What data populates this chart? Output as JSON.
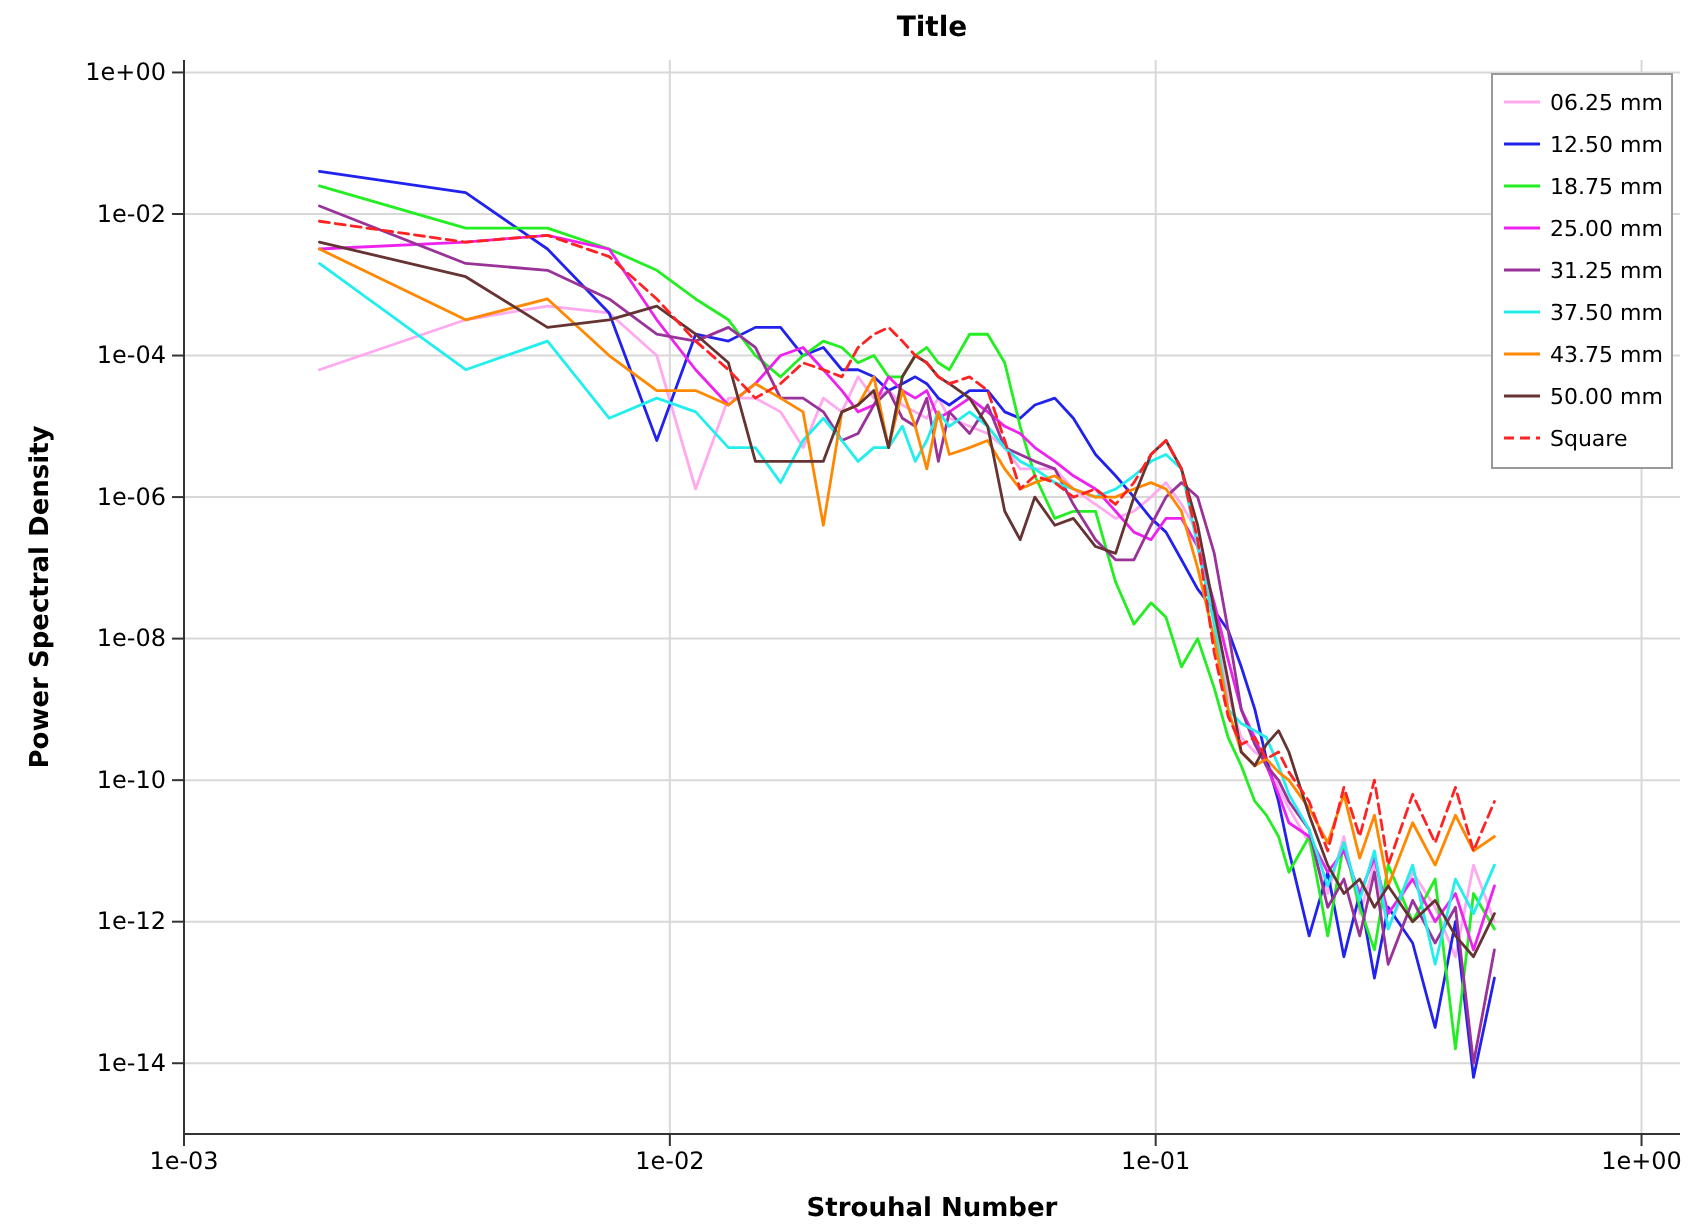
{
  "chart_data": {
    "type": "line",
    "title": "Title",
    "xlabel": "Strouhal Number",
    "ylabel": "Power Spectral Density",
    "log": "xy",
    "grid": true,
    "legend": "top right",
    "marker": "none",
    "xlim": [
      0.001,
      1.2
    ],
    "ylim": [
      1e-15,
      1.5
    ],
    "xticks": [
      {
        "value": 0.001,
        "label": "1e-03"
      },
      {
        "value": 0.01,
        "label": "1e-02"
      },
      {
        "value": 0.1,
        "label": "1e-01"
      },
      {
        "value": 1,
        "label": "1e+00"
      }
    ],
    "yticks": [
      {
        "value": 1,
        "label": "1e+00"
      },
      {
        "value": 0.01,
        "label": "1e-02"
      },
      {
        "value": 0.0001,
        "label": "1e-04"
      },
      {
        "value": 1e-06,
        "label": "1e-06"
      },
      {
        "value": 1e-08,
        "label": "1e-08"
      },
      {
        "value": 1e-10,
        "label": "1e-10"
      },
      {
        "value": 1e-12,
        "label": "1e-12"
      },
      {
        "value": 1e-14,
        "label": "1e-14"
      }
    ],
    "x": [
      0.0019,
      0.0038,
      0.0056,
      0.0075,
      0.0094,
      0.0113,
      0.0132,
      0.015,
      0.0169,
      0.0188,
      0.0207,
      0.0226,
      0.0244,
      0.0263,
      0.0282,
      0.0301,
      0.032,
      0.0338,
      0.0357,
      0.0376,
      0.0414,
      0.0451,
      0.0489,
      0.0526,
      0.0564,
      0.062,
      0.0677,
      0.0752,
      0.0827,
      0.0902,
      0.0978,
      0.105,
      0.113,
      0.122,
      0.132,
      0.141,
      0.15,
      0.16,
      0.169,
      0.179,
      0.188,
      0.207,
      0.226,
      0.244,
      0.263,
      0.282,
      0.301,
      0.338,
      0.376,
      0.414,
      0.451,
      0.498
    ],
    "series": [
      {
        "name": "06.25 mm",
        "color": "#ffaaee",
        "line_style": "solid",
        "values": [
          6.3e-05,
          0.00032,
          0.0005,
          0.0004,
          0.0001,
          1.3e-06,
          2.5e-05,
          2.5e-05,
          1.6e-05,
          5e-06,
          2.5e-05,
          1.6e-05,
          5e-05,
          2.5e-05,
          3.2e-05,
          2e-05,
          1.6e-05,
          1.3e-05,
          2.5e-05,
          1.3e-05,
          1e-05,
          7.9e-06,
          5e-06,
          2.5e-06,
          2.5e-06,
          2.5e-06,
          1.3e-06,
          7.9e-07,
          5e-07,
          6.3e-07,
          1e-06,
          1.6e-06,
          7.9e-07,
          3.2e-07,
          1.6e-08,
          1.6e-09,
          4e-10,
          2.5e-10,
          2e-10,
          7.9e-11,
          4e-11,
          1.3e-11,
          2.5e-12,
          1.6e-11,
          1.3e-12,
          6.3e-12,
          7.9e-13,
          5e-12,
          1.6e-12,
          3.2e-13,
          6.3e-12,
          1e-12
        ]
      },
      {
        "name": "12.50 mm",
        "color": "#2222ee",
        "line_style": "solid",
        "values": [
          0.04,
          0.02,
          0.0032,
          0.0004,
          6.3e-06,
          0.0002,
          0.00016,
          0.00025,
          0.00025,
          0.0001,
          0.00013,
          6.3e-05,
          6.3e-05,
          5e-05,
          3.2e-05,
          4e-05,
          5e-05,
          4e-05,
          2.5e-05,
          2e-05,
          3.2e-05,
          3.2e-05,
          1.6e-05,
          1.3e-05,
          2e-05,
          2.5e-05,
          1.3e-05,
          4e-06,
          2e-06,
          1e-06,
          5e-07,
          3.2e-07,
          1.3e-07,
          5e-08,
          2.5e-08,
          1.3e-08,
          4e-09,
          1e-09,
          2e-10,
          5e-11,
          1e-11,
          6.3e-13,
          5e-12,
          3.2e-13,
          2.5e-12,
          1.6e-13,
          1.6e-12,
          5e-13,
          3.2e-14,
          1e-12,
          6.3e-15,
          1.6e-13
        ]
      },
      {
        "name": "18.75 mm",
        "color": "#22ee22",
        "line_style": "solid",
        "values": [
          0.025,
          0.0063,
          0.0063,
          0.0032,
          0.0016,
          0.00063,
          0.00032,
          0.0001,
          5e-05,
          0.0001,
          0.00016,
          0.00013,
          7.9e-05,
          0.0001,
          5e-05,
          5e-05,
          0.0001,
          0.00013,
          7.9e-05,
          6.3e-05,
          0.0002,
          0.0002,
          7.9e-05,
          1e-05,
          2e-06,
          5e-07,
          6.3e-07,
          6.3e-07,
          6.3e-08,
          1.6e-08,
          3.2e-08,
          2e-08,
          4e-09,
          1e-08,
          2e-09,
          4e-10,
          1.6e-10,
          5e-11,
          3.2e-11,
          1.6e-11,
          5e-12,
          1.6e-11,
          6.3e-13,
          1.3e-11,
          1.6e-12,
          4e-13,
          6.3e-12,
          1e-12,
          4e-12,
          1.6e-14,
          2.5e-12,
          7.9e-13
        ]
      },
      {
        "name": "25.00 mm",
        "color": "#ee22ee",
        "line_style": "solid",
        "values": [
          0.0032,
          0.004,
          0.005,
          0.0032,
          0.00032,
          6.3e-05,
          2e-05,
          4e-05,
          0.0001,
          0.00013,
          6.3e-05,
          3.2e-05,
          1.6e-05,
          2e-05,
          5e-05,
          3.2e-05,
          2.5e-05,
          3.2e-05,
          1.3e-05,
          1.6e-05,
          2.5e-05,
          1.6e-05,
          1e-05,
          7.9e-06,
          5e-06,
          3.2e-06,
          2e-06,
          1.3e-06,
          6.3e-07,
          3.2e-07,
          2.5e-07,
          5e-07,
          5e-07,
          2e-07,
          3.2e-08,
          5e-09,
          1e-09,
          4e-10,
          1.6e-10,
          6.3e-11,
          2.5e-11,
          1.6e-11,
          5e-12,
          1e-11,
          2.5e-12,
          7.9e-12,
          1.3e-12,
          4e-12,
          1e-12,
          2.5e-12,
          4e-13,
          3.2e-12
        ]
      },
      {
        "name": "31.25 mm",
        "color": "#993399",
        "line_style": "solid",
        "values": [
          0.013,
          0.002,
          0.0016,
          0.00063,
          0.0002,
          0.00016,
          0.00025,
          0.00013,
          2.5e-05,
          2.5e-05,
          1.6e-05,
          6.3e-06,
          7.9e-06,
          2e-05,
          3.2e-05,
          1.3e-05,
          1e-05,
          2.5e-05,
          3.2e-06,
          1.6e-05,
          7.9e-06,
          2e-05,
          5e-06,
          4e-06,
          3.2e-06,
          2.5e-06,
          7.9e-07,
          2.5e-07,
          1.3e-07,
          1.3e-07,
          4e-07,
          1e-06,
          1.6e-06,
          1e-06,
          1.6e-07,
          1.3e-08,
          1e-09,
          3.2e-10,
          1.6e-10,
          1e-10,
          5e-11,
          2e-11,
          1.6e-12,
          4e-12,
          6.3e-13,
          5e-12,
          2.5e-13,
          2e-12,
          5e-13,
          1.6e-12,
          1e-14,
          4e-13
        ]
      },
      {
        "name": "37.50 mm",
        "color": "#22eeee",
        "line_style": "solid",
        "values": [
          0.002,
          6.3e-05,
          0.00016,
          1.3e-05,
          2.5e-05,
          1.6e-05,
          5e-06,
          5e-06,
          1.6e-06,
          6.3e-06,
          1.3e-05,
          6.3e-06,
          3.2e-06,
          5e-06,
          5e-06,
          1e-05,
          3.2e-06,
          6.3e-06,
          1.6e-05,
          1e-05,
          1.6e-05,
          1e-05,
          5e-06,
          3.2e-06,
          2.5e-06,
          1.6e-06,
          1.3e-06,
          1e-06,
          1.3e-06,
          2e-06,
          3.2e-06,
          4e-06,
          2.5e-06,
          2e-07,
          1.6e-08,
          1e-09,
          6.3e-10,
          5e-10,
          4e-10,
          1.6e-10,
          6.3e-11,
          2e-11,
          3.2e-12,
          1.3e-11,
          2e-12,
          1e-11,
          7.9e-13,
          6.3e-12,
          2.5e-13,
          4e-12,
          1.3e-12,
          6.3e-12
        ]
      },
      {
        "name": "43.75 mm",
        "color": "#ff8800",
        "line_style": "solid",
        "values": [
          0.0032,
          0.00032,
          0.00063,
          0.0001,
          3.2e-05,
          3.2e-05,
          2e-05,
          4e-05,
          2.5e-05,
          1.6e-05,
          4e-07,
          1.6e-05,
          2e-05,
          5e-05,
          5e-06,
          3.2e-05,
          1e-05,
          2.5e-06,
          1.6e-05,
          4e-06,
          5e-06,
          6.3e-06,
          2.5e-06,
          1.3e-06,
          1.6e-06,
          2e-06,
          1.3e-06,
          1e-06,
          1e-06,
          1.3e-06,
          1.6e-06,
          1.3e-06,
          6.3e-07,
          1e-07,
          1e-08,
          1e-09,
          2.5e-10,
          1.6e-10,
          2e-10,
          1.3e-10,
          1e-10,
          4e-11,
          1.3e-11,
          6.3e-11,
          7.9e-12,
          3.2e-11,
          3.2e-12,
          2.5e-11,
          6.3e-12,
          3.2e-11,
          1e-11,
          1.6e-11
        ]
      },
      {
        "name": "50.00 mm",
        "color": "#663333",
        "line_style": "solid",
        "values": [
          0.004,
          0.0013,
          0.00025,
          0.00032,
          0.0005,
          0.0002,
          7.9e-05,
          3.2e-06,
          3.2e-06,
          3.2e-06,
          3.2e-06,
          1.6e-05,
          2e-05,
          3.2e-05,
          5e-06,
          5e-05,
          0.0001,
          7.9e-05,
          5e-05,
          4e-05,
          2.5e-05,
          1e-05,
          6.3e-07,
          2.5e-07,
          1e-06,
          4e-07,
          5e-07,
          2e-07,
          1.6e-07,
          1e-06,
          4e-06,
          6.3e-06,
          2.5e-06,
          4e-07,
          2.5e-08,
          2.5e-09,
          2.5e-10,
          1.6e-10,
          3.2e-10,
          5e-10,
          2.5e-10,
          3.2e-11,
          6.3e-12,
          2.5e-12,
          4e-12,
          1.6e-12,
          3.2e-12,
          1e-12,
          2e-12,
          6.3e-13,
          3.2e-13,
          1.3e-12
        ]
      },
      {
        "name": "Square",
        "color": "#ff2222",
        "line_style": "dashed",
        "values": [
          0.0079,
          0.004,
          0.005,
          0.0025,
          0.00063,
          0.00016,
          6.3e-05,
          2.5e-05,
          4e-05,
          7.9e-05,
          6.3e-05,
          5e-05,
          0.00013,
          0.0002,
          0.00025,
          0.00016,
          0.0001,
          7.9e-05,
          5e-05,
          4e-05,
          5e-05,
          3.2e-05,
          6.3e-06,
          1.3e-06,
          2e-06,
          1.6e-06,
          1e-06,
          1.3e-06,
          7.9e-07,
          1.6e-06,
          4e-06,
          6.3e-06,
          2.5e-06,
          2.5e-07,
          6.3e-09,
          7.9e-10,
          3.2e-10,
          4e-10,
          2e-10,
          2.5e-10,
          1.3e-10,
          5e-11,
          1e-11,
          7.9e-11,
          1.6e-11,
          1e-10,
          6.3e-12,
          6.3e-11,
          1.3e-11,
          7.9e-11,
          1e-11,
          5e-11
        ]
      }
    ]
  }
}
